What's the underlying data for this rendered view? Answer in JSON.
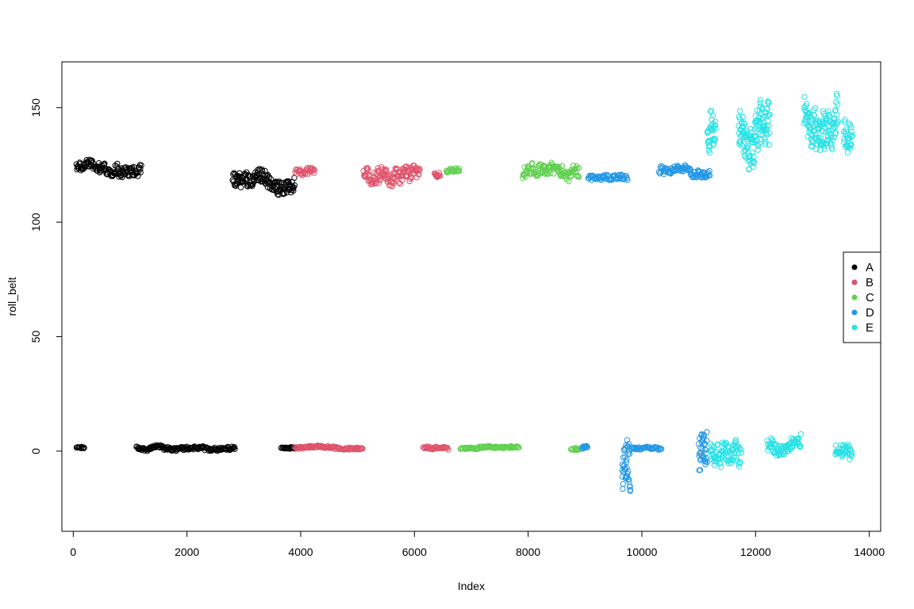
{
  "chart_data": {
    "type": "scatter",
    "title": "",
    "xlabel": "Index",
    "ylabel": "roll_belt",
    "xlim": [
      -200,
      14200
    ],
    "ylim": [
      -35,
      170
    ],
    "x_ticks": [
      0,
      2000,
      4000,
      6000,
      8000,
      10000,
      12000,
      14000
    ],
    "x_tick_labels": [
      "0",
      "2000",
      "4000",
      "6000",
      "8000",
      "10000",
      "12000",
      "14000"
    ],
    "y_ticks": [
      0,
      50,
      100,
      150
    ],
    "y_tick_labels": [
      "0",
      "50",
      "100",
      "150"
    ],
    "grid": false,
    "legend": {
      "position": "right",
      "entries": [
        {
          "label": "A",
          "color": "#000000"
        },
        {
          "label": "B",
          "color": "#DF536B"
        },
        {
          "label": "C",
          "color": "#61D04F"
        },
        {
          "label": "D",
          "color": "#2297E6"
        },
        {
          "label": "E",
          "color": "#28E2E5"
        }
      ]
    },
    "series": [
      {
        "name": "A",
        "color": "#000000",
        "segments": [
          {
            "x": [
              50,
              200
            ],
            "center": 1.5,
            "spread": 0.8
          },
          {
            "x": [
              1100,
              2850
            ],
            "center": 1.5,
            "spread": 1.5
          },
          {
            "x": [
              3650,
              3900
            ],
            "center": 1.5,
            "spread": 0.8
          },
          {
            "x": [
              50,
              1200
            ],
            "center": 123.5,
            "spread": 4
          },
          {
            "x": [
              2800,
              3900
            ],
            "center": 117.5,
            "spread": 6
          }
        ]
      },
      {
        "name": "B",
        "color": "#DF536B",
        "segments": [
          {
            "x": [
              3900,
              5100
            ],
            "center": 1.5,
            "spread": 1
          },
          {
            "x": [
              6150,
              6600
            ],
            "center": 1.5,
            "spread": 1
          },
          {
            "x": [
              3900,
              4250
            ],
            "center": 121.5,
            "spread": 2.5
          },
          {
            "x": [
              5100,
              6100
            ],
            "center": 120.5,
            "spread": 5.5
          },
          {
            "x": [
              6350,
              6450
            ],
            "center": 121,
            "spread": 2
          }
        ]
      },
      {
        "name": "C",
        "color": "#61D04F",
        "segments": [
          {
            "x": [
              6800,
              7850
            ],
            "center": 1.5,
            "spread": 0.8
          },
          {
            "x": [
              8750,
              8900
            ],
            "center": 1,
            "spread": 1
          },
          {
            "x": [
              6550,
              6800
            ],
            "center": 122,
            "spread": 1.5
          },
          {
            "x": [
              7900,
              8900
            ],
            "center": 121.5,
            "spread": 4.5
          }
        ]
      },
      {
        "name": "D",
        "color": "#2297E6",
        "segments": [
          {
            "x": [
              9650,
              9800
            ],
            "center": -5,
            "spread": 18
          },
          {
            "x": [
              9800,
              10350
            ],
            "center": 1.5,
            "spread": 1
          },
          {
            "x": [
              8950,
              9050
            ],
            "center": 1.5,
            "spread": 1
          },
          {
            "x": [
              11000,
              11150
            ],
            "center": -3,
            "spread": 15
          },
          {
            "x": [
              9050,
              9750
            ],
            "center": 120,
            "spread": 2
          },
          {
            "x": [
              10300,
              11200
            ],
            "center": 122,
            "spread": 3
          }
        ]
      },
      {
        "name": "E",
        "color": "#28E2E5",
        "segments": [
          {
            "x": [
              11200,
              11750
            ],
            "center": 1,
            "spread": 8
          },
          {
            "x": [
              12200,
              12800
            ],
            "center": 2.5,
            "spread": 5
          },
          {
            "x": [
              13400,
              13700
            ],
            "center": 1,
            "spread": 6
          },
          {
            "x": [
              11150,
              11300
            ],
            "center": 140,
            "spread": 15
          },
          {
            "x": [
              11700,
              12250
            ],
            "center": 138,
            "spread": 16
          },
          {
            "x": [
              12850,
              13450
            ],
            "center": 144,
            "spread": 14
          },
          {
            "x": [
              13550,
              13700
            ],
            "center": 140,
            "spread": 12
          }
        ]
      }
    ]
  }
}
